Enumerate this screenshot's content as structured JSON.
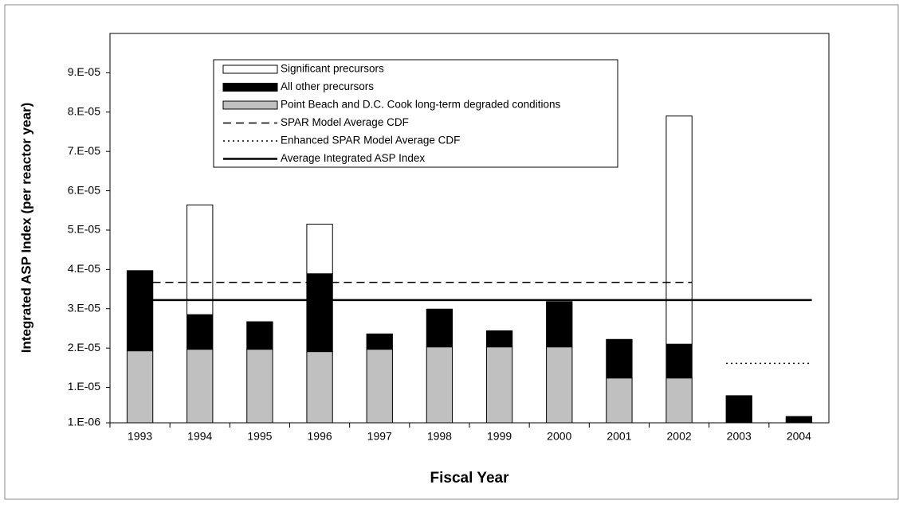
{
  "chart_data": {
    "type": "bar",
    "stacked": true,
    "x_label": "Fiscal Year",
    "y_label": "Integrated ASP Index (per reactor year)",
    "categories": [
      "1993",
      "1994",
      "1995",
      "1996",
      "1997",
      "1998",
      "1999",
      "2000",
      "2001",
      "2002",
      "2003",
      "2004"
    ],
    "ylim": [
      1e-06,
      0.0001
    ],
    "yticks": [
      {
        "value": 1e-06,
        "label": "1.E-06"
      },
      {
        "value": 1e-05,
        "label": "1.E-05"
      },
      {
        "value": 2e-05,
        "label": "2.E-05"
      },
      {
        "value": 3e-05,
        "label": "3.E-05"
      },
      {
        "value": 4e-05,
        "label": "4.E-05"
      },
      {
        "value": 5e-05,
        "label": "5.E-05"
      },
      {
        "value": 6e-05,
        "label": "6.E-05"
      },
      {
        "value": 7e-05,
        "label": "7.E-05"
      },
      {
        "value": 8e-05,
        "label": "8.E-05"
      },
      {
        "value": 9e-05,
        "label": "9.E-05"
      }
    ],
    "grid": false,
    "series": [
      {
        "name": "Significant precursors",
        "kind": "bar",
        "color": "#ffffff",
        "values": [
          0,
          2.79e-05,
          0,
          1.26e-05,
          0,
          0,
          0,
          0,
          0,
          5.8e-05,
          0,
          0
        ]
      },
      {
        "name": "All other precursors",
        "kind": "bar",
        "color": "#000000",
        "values": [
          2.04e-05,
          8.8e-06,
          7e-06,
          1.98e-05,
          3.9e-06,
          9.6e-06,
          4.1e-06,
          1.15e-05,
          9.8e-06,
          8.6e-06,
          6.9e-06,
          1.6e-06
        ]
      },
      {
        "name": "Point Beach and D.C. Cook long-term degraded conditions",
        "kind": "bar",
        "color": "#c0c0c0",
        "values": [
          1.83e-05,
          1.87e-05,
          1.87e-05,
          1.81e-05,
          1.87e-05,
          1.93e-05,
          1.93e-05,
          1.93e-05,
          1.14e-05,
          1.14e-05,
          0,
          0
        ]
      },
      {
        "name": "SPAR Model Average CDF",
        "kind": "line",
        "dash": "dashed",
        "color": "#000000",
        "values": [
          3.67e-05,
          3.67e-05,
          3.67e-05,
          3.67e-05,
          3.67e-05,
          3.67e-05,
          3.67e-05,
          3.67e-05,
          3.67e-05,
          3.67e-05,
          null,
          null
        ]
      },
      {
        "name": "Enhanced SPAR Model Average CDF",
        "kind": "line",
        "dash": "dotted",
        "color": "#000000",
        "values": [
          null,
          null,
          null,
          null,
          null,
          null,
          null,
          null,
          null,
          null,
          1.61e-05,
          1.61e-05
        ]
      },
      {
        "name": "Average Integrated ASP Index",
        "kind": "line",
        "dash": "solid",
        "color": "#000000",
        "values": [
          3.22e-05,
          3.22e-05,
          3.22e-05,
          3.22e-05,
          3.22e-05,
          3.22e-05,
          3.22e-05,
          3.22e-05,
          3.22e-05,
          3.22e-05,
          3.22e-05,
          3.22e-05
        ]
      }
    ]
  }
}
